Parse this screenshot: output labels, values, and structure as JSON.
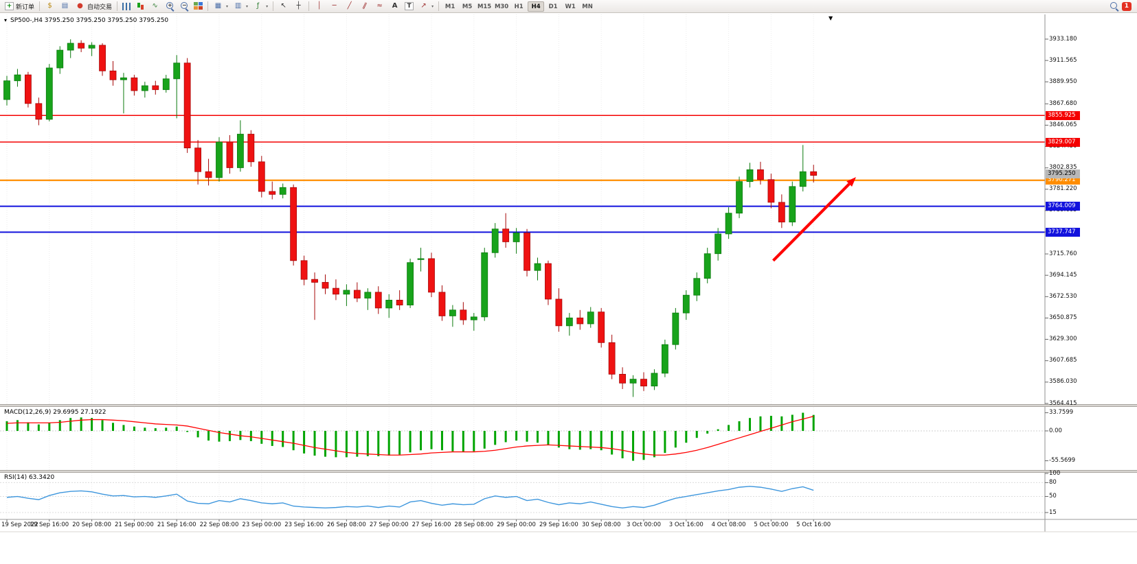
{
  "toolbar": {
    "left_items": [
      {
        "name": "new-order-button",
        "icon": "new-order-icon",
        "label": "新订单"
      },
      {
        "sep": 1
      },
      {
        "name": "market-watch-icon",
        "icon": "market-watch-icon"
      },
      {
        "name": "data-window-icon",
        "icon": "data-window-icon"
      },
      {
        "name": "autotrading-button",
        "icon": "autotrading-icon",
        "label": "自动交易"
      },
      {
        "sep": 1
      },
      {
        "name": "bar-chart-icon",
        "icon": "bar-chart-icon"
      },
      {
        "name": "candlestick-chart-icon",
        "icon": "candlestick-chart-icon"
      },
      {
        "name": "line-chart-icon",
        "icon": "line-chart-icon"
      },
      {
        "name": "zoom-in-icon",
        "icon": "zoom-in-icon"
      },
      {
        "name": "zoom-out-icon",
        "icon": "zoom-out-icon"
      },
      {
        "name": "tile-windows-icon",
        "icon": "tile-windows-icon"
      },
      {
        "sep": 1
      },
      {
        "name": "new-chart-icon",
        "icon": "new-chart-icon",
        "dropdown": 1
      },
      {
        "name": "profiles-icon",
        "icon": "profiles-icon",
        "dropdown": 1
      },
      {
        "name": "indicators-icon",
        "icon": "indicators-icon",
        "dropdown": 1
      },
      {
        "sep": 1
      },
      {
        "name": "cursor-icon",
        "icon": "cursor-icon"
      },
      {
        "name": "crosshair-icon",
        "icon": "crosshair-icon"
      },
      {
        "sep": 1
      },
      {
        "name": "vertical-line-icon",
        "icon": "vertical-line-icon"
      },
      {
        "name": "horizontal-line-icon",
        "icon": "horizontal-line-icon"
      },
      {
        "name": "trendline-icon",
        "icon": "trendline-icon"
      },
      {
        "name": "channel-icon",
        "icon": "channel-icon"
      },
      {
        "name": "fibonacci-icon",
        "icon": "fibonacci-icon"
      },
      {
        "name": "text-icon",
        "icon": "text-icon"
      },
      {
        "name": "label-icon",
        "icon": "label-icon"
      },
      {
        "name": "arrows-icon",
        "icon": "arrows-icon",
        "dropdown": 1
      },
      {
        "sep": 1
      }
    ],
    "timeframes": [
      "M1",
      "M5",
      "M15",
      "M30",
      "H1",
      "H4",
      "D1",
      "W1",
      "MN"
    ],
    "active_timeframe": "H4",
    "right_items": [
      {
        "name": "search-icon",
        "icon": "search-icon"
      },
      {
        "name": "alert-badge",
        "label": "1"
      }
    ]
  },
  "chart_data": {
    "type": "candlestick",
    "symbol": "SP500-",
    "timeframe": "H4",
    "header": "SP500-,H4 3795.250 3795.250 3795.250 3795.250",
    "ohlc": {
      "open": "3795.250",
      "high": "3795.250",
      "low": "3795.250",
      "close": "3795.250"
    },
    "colors": {
      "up": "#18a31b",
      "up_edge": "#0c7a0e",
      "down": "#ef1212",
      "down_edge": "#a60808",
      "macd_hist": "#00a400",
      "macd_signal": "#ff0000",
      "rsi_line": "#3d96dd"
    },
    "price_ticks": [
      "3933.180",
      "3911.565",
      "3889.950",
      "3867.680",
      "3846.065",
      "3824.450",
      "3802.835",
      "3781.220",
      "3759.605",
      "3737.990",
      "3715.760",
      "3694.145",
      "3672.530",
      "3650.875",
      "3629.300",
      "3607.685",
      "3586.030",
      "3564.415"
    ],
    "hlines": [
      {
        "price": 3855.925,
        "label": "3855.925",
        "color": "#f40000",
        "width": 1.4
      },
      {
        "price": 3829.007,
        "label": "3829.007",
        "color": "#f40000",
        "width": 1.4
      },
      {
        "price": 3790.271,
        "label": "3790.271",
        "color": "#ff8d00",
        "width": 2.2
      },
      {
        "price": 3764.009,
        "label": "3764.009",
        "color": "#1212dd",
        "width": 2
      },
      {
        "price": 3737.747,
        "label": "3737.747",
        "color": "#1212dd",
        "width": 2
      }
    ],
    "current_price": {
      "value": 3795.25,
      "label": "3795.250"
    },
    "trend_arrow": {
      "from_bar": 72.2,
      "from_price": 3709,
      "to_bar": 80,
      "to_price": 3793.5,
      "color": "#ff0000"
    },
    "candles": [
      [
        3872,
        3896,
        3866,
        3891
      ],
      [
        3891,
        3903,
        3885,
        3897
      ],
      [
        3897,
        3900,
        3864,
        3868
      ],
      [
        3868,
        3874,
        3846,
        3852
      ],
      [
        3852,
        3908,
        3850,
        3904
      ],
      [
        3904,
        3926,
        3898,
        3922
      ],
      [
        3922,
        3933,
        3914,
        3929
      ],
      [
        3929,
        3932,
        3920,
        3924
      ],
      [
        3924,
        3930,
        3916,
        3927
      ],
      [
        3927,
        3929,
        3896,
        3901
      ],
      [
        3901,
        3911,
        3886,
        3892
      ],
      [
        3892,
        3899,
        3858,
        3894
      ],
      [
        3894,
        3897,
        3876,
        3881
      ],
      [
        3881,
        3890,
        3874,
        3886
      ],
      [
        3886,
        3891,
        3877,
        3882
      ],
      [
        3882,
        3897,
        3879,
        3893
      ],
      [
        3893,
        3917,
        3853,
        3909
      ],
      [
        3909,
        3914,
        3818,
        3823
      ],
      [
        3823,
        3831,
        3786,
        3799
      ],
      [
        3799,
        3812,
        3785,
        3793
      ],
      [
        3793,
        3834,
        3789,
        3829
      ],
      [
        3829,
        3836,
        3797,
        3803
      ],
      [
        3803,
        3851,
        3799,
        3837
      ],
      [
        3837,
        3841,
        3804,
        3809
      ],
      [
        3809,
        3815,
        3773,
        3779
      ],
      [
        3779,
        3789,
        3771,
        3776
      ],
      [
        3776,
        3787,
        3772,
        3783
      ],
      [
        3783,
        3786,
        3704,
        3709
      ],
      [
        3709,
        3714,
        3684,
        3690
      ],
      [
        3690,
        3697,
        3649,
        3687
      ],
      [
        3687,
        3695,
        3675,
        3681
      ],
      [
        3681,
        3690,
        3669,
        3675
      ],
      [
        3675,
        3685,
        3663,
        3679
      ],
      [
        3679,
        3687,
        3667,
        3671
      ],
      [
        3671,
        3681,
        3659,
        3677
      ],
      [
        3677,
        3683,
        3655,
        3661
      ],
      [
        3661,
        3675,
        3651,
        3669
      ],
      [
        3669,
        3679,
        3659,
        3664
      ],
      [
        3664,
        3711,
        3661,
        3707
      ],
      [
        3710,
        3722,
        3698,
        3711
      ],
      [
        3711,
        3717,
        3672,
        3677
      ],
      [
        3677,
        3684,
        3648,
        3653
      ],
      [
        3653,
        3664,
        3642,
        3659
      ],
      [
        3659,
        3667,
        3644,
        3649
      ],
      [
        3649,
        3656,
        3638,
        3652
      ],
      [
        3652,
        3722,
        3648,
        3717
      ],
      [
        3717,
        3747,
        3712,
        3741
      ],
      [
        3741,
        3757,
        3722,
        3728
      ],
      [
        3728,
        3742,
        3716,
        3737
      ],
      [
        3737,
        3741,
        3693,
        3699
      ],
      [
        3699,
        3712,
        3689,
        3706
      ],
      [
        3706,
        3709,
        3664,
        3670
      ],
      [
        3670,
        3681,
        3637,
        3643
      ],
      [
        3643,
        3656,
        3633,
        3651
      ],
      [
        3651,
        3659,
        3639,
        3645
      ],
      [
        3645,
        3662,
        3641,
        3657
      ],
      [
        3657,
        3661,
        3621,
        3626
      ],
      [
        3626,
        3634,
        3589,
        3594
      ],
      [
        3594,
        3601,
        3579,
        3585
      ],
      [
        3585,
        3593,
        3571,
        3589
      ],
      [
        3589,
        3596,
        3577,
        3582
      ],
      [
        3582,
        3599,
        3578,
        3595
      ],
      [
        3595,
        3629,
        3591,
        3624
      ],
      [
        3624,
        3661,
        3619,
        3656
      ],
      [
        3656,
        3679,
        3649,
        3674
      ],
      [
        3674,
        3697,
        3668,
        3691
      ],
      [
        3691,
        3722,
        3686,
        3716
      ],
      [
        3716,
        3742,
        3709,
        3736
      ],
      [
        3736,
        3763,
        3731,
        3757
      ],
      [
        3757,
        3794,
        3752,
        3789
      ],
      [
        3789,
        3808,
        3783,
        3801
      ],
      [
        3801,
        3809,
        3786,
        3791
      ],
      [
        3791,
        3797,
        3762,
        3768
      ],
      [
        3768,
        3776,
        3742,
        3748
      ],
      [
        3748,
        3789,
        3744,
        3784
      ],
      [
        3784,
        3826,
        3779,
        3799
      ],
      [
        3799,
        3806,
        3788,
        3795.25
      ]
    ],
    "macd": {
      "label": "MACD(12,26,9) 29.6995 27.1922",
      "ticks": [
        {
          "v": 33.7599,
          "label": "33.7599"
        },
        {
          "v": 0,
          "label": "0.00"
        },
        {
          "v": -55.5699,
          "label": "-55.5699"
        }
      ],
      "hist": [
        18,
        20,
        16,
        12,
        15,
        20,
        24,
        25,
        24,
        20,
        15,
        11,
        8,
        6,
        5,
        6,
        8,
        -2,
        -12,
        -18,
        -20,
        -19,
        -17,
        -19,
        -24,
        -28,
        -30,
        -36,
        -42,
        -46,
        -48,
        -49,
        -49,
        -48,
        -47,
        -47,
        -46,
        -44,
        -40,
        -36,
        -34,
        -36,
        -38,
        -39,
        -38,
        -33,
        -26,
        -21,
        -18,
        -20,
        -22,
        -26,
        -31,
        -34,
        -35,
        -34,
        -36,
        -44,
        -51,
        -55.57,
        -54,
        -49,
        -41,
        -31,
        -22,
        -13,
        -5,
        3,
        11,
        18,
        24,
        27,
        28,
        27,
        30,
        33.76,
        29.7
      ],
      "signal": [
        14,
        15,
        15,
        15,
        15,
        16,
        18,
        20,
        21,
        21,
        20,
        19,
        17,
        15,
        13,
        12,
        11,
        9,
        5,
        1,
        -3,
        -6,
        -9,
        -11,
        -14,
        -17,
        -20,
        -23,
        -27,
        -31,
        -34,
        -37,
        -40,
        -42,
        -43,
        -44,
        -45,
        -45,
        -44,
        -43,
        -41,
        -40,
        -39,
        -39,
        -39,
        -38,
        -36,
        -33,
        -30,
        -28,
        -27,
        -26,
        -27,
        -28,
        -29,
        -30,
        -31,
        -33,
        -36,
        -40,
        -43,
        -45,
        -45,
        -43,
        -40,
        -36,
        -31,
        -25,
        -19,
        -13,
        -7,
        -1,
        5,
        11,
        17,
        22,
        27.19
      ]
    },
    "rsi": {
      "label": "RSI(14) 63.3420",
      "ticks": [
        {
          "v": 100,
          "label": "100"
        },
        {
          "v": 80,
          "label": "80"
        },
        {
          "v": 50,
          "label": "50"
        },
        {
          "v": 15,
          "label": "15"
        }
      ],
      "values": [
        48,
        50,
        46,
        43,
        52,
        58,
        61,
        62,
        60,
        55,
        51,
        52,
        49,
        50,
        48,
        51,
        55,
        40,
        35,
        34,
        41,
        38,
        45,
        41,
        36,
        34,
        36,
        29,
        27,
        26,
        25,
        26,
        28,
        27,
        29,
        26,
        29,
        27,
        38,
        41,
        35,
        31,
        34,
        32,
        33,
        45,
        51,
        48,
        50,
        41,
        44,
        37,
        32,
        36,
        34,
        38,
        33,
        28,
        25,
        28,
        26,
        31,
        39,
        46,
        50,
        54,
        58,
        62,
        65,
        70,
        72,
        70,
        66,
        61,
        67,
        71,
        63.34
      ]
    },
    "time_labels": [
      "19 Sep 2022",
      "19 Sep 16:00",
      "20 Sep 08:00",
      "21 Sep 00:00",
      "21 Sep 16:00",
      "22 Sep 08:00",
      "23 Sep 00:00",
      "23 Sep 16:00",
      "26 Sep 08:00",
      "27 Sep 00:00",
      "27 Sep 16:00",
      "28 Sep 08:00",
      "29 Sep 00:00",
      "29 Sep 16:00",
      "30 Sep 08:00",
      "3 Oct 00:00",
      "3 Oct 16:00",
      "4 Oct 08:00",
      "5 Oct 00:00",
      "5 Oct 16:00"
    ]
  }
}
